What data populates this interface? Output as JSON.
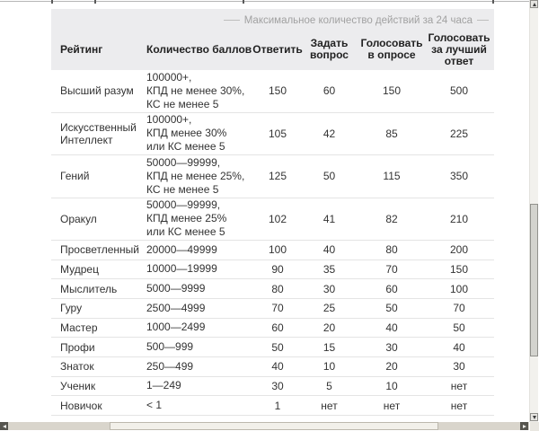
{
  "colors": {
    "page_background": "#ffffff",
    "header_band": "#ececee",
    "legend_text": "#a1a1a1",
    "header_text": "#222222",
    "cell_text": "#333333",
    "row_divider": "#e4e4e4",
    "scroll_track_horizontal": "#d9d5cc",
    "scroll_thumb_horizontal": "#f2f0ea",
    "scroll_track_vertical": "#f2f1ed",
    "scroll_thumb_vertical": "#d3d3ce"
  },
  "icons": {
    "scroll_up": "triangle-up",
    "scroll_down": "triangle-down",
    "scroll_left": "triangle-left",
    "scroll_right": "triangle-right"
  },
  "table": {
    "legend": "Максимальное количество действий за 24 часа",
    "columns": [
      "Рейтинг",
      "Количество баллов",
      "Ответить",
      "Задать вопрос",
      "Голосовать в опросе",
      "Голосовать за лучший ответ"
    ],
    "rows": [
      {
        "rating": "Высший разум",
        "points": [
          "100000+,",
          "КПД не менее 30%,",
          "КС не менее 5"
        ],
        "answer": "150",
        "ask": "60",
        "vote_in_poll": "150",
        "vote_best_answer": "500"
      },
      {
        "rating": "Искусственный Интеллект",
        "points": [
          "100000+,",
          "КПД менее 30%",
          "или КС менее 5"
        ],
        "answer": "105",
        "ask": "42",
        "vote_in_poll": "85",
        "vote_best_answer": "225"
      },
      {
        "rating": "Гений",
        "points": [
          "50000—99999,",
          "КПД не менее 25%,",
          "КС не менее 5"
        ],
        "answer": "125",
        "ask": "50",
        "vote_in_poll": "115",
        "vote_best_answer": "350"
      },
      {
        "rating": "Оракул",
        "points": [
          "50000—99999,",
          "КПД менее 25%",
          "или КС менее 5"
        ],
        "answer": "102",
        "ask": "41",
        "vote_in_poll": "82",
        "vote_best_answer": "210"
      },
      {
        "rating": "Просветленный",
        "points": [
          "20000—49999"
        ],
        "answer": "100",
        "ask": "40",
        "vote_in_poll": "80",
        "vote_best_answer": "200"
      },
      {
        "rating": "Мудрец",
        "points": [
          "10000—19999"
        ],
        "answer": "90",
        "ask": "35",
        "vote_in_poll": "70",
        "vote_best_answer": "150"
      },
      {
        "rating": "Мыслитель",
        "points": [
          "5000—9999"
        ],
        "answer": "80",
        "ask": "30",
        "vote_in_poll": "60",
        "vote_best_answer": "100"
      },
      {
        "rating": "Гуру",
        "points": [
          "2500—4999"
        ],
        "answer": "70",
        "ask": "25",
        "vote_in_poll": "50",
        "vote_best_answer": "70"
      },
      {
        "rating": "Мастер",
        "points": [
          "1000—2499"
        ],
        "answer": "60",
        "ask": "20",
        "vote_in_poll": "40",
        "vote_best_answer": "50"
      },
      {
        "rating": "Профи",
        "points": [
          "500—999"
        ],
        "answer": "50",
        "ask": "15",
        "vote_in_poll": "30",
        "vote_best_answer": "40"
      },
      {
        "rating": "Знаток",
        "points": [
          "250—499"
        ],
        "answer": "40",
        "ask": "10",
        "vote_in_poll": "20",
        "vote_best_answer": "30"
      },
      {
        "rating": "Ученик",
        "points": [
          "1—249"
        ],
        "answer": "30",
        "ask": "5",
        "vote_in_poll": "10",
        "vote_best_answer": "нет"
      },
      {
        "rating": "Новичок",
        "points": [
          "< 1"
        ],
        "answer": "1",
        "ask": "нет",
        "vote_in_poll": "нет",
        "vote_best_answer": "нет"
      }
    ]
  }
}
